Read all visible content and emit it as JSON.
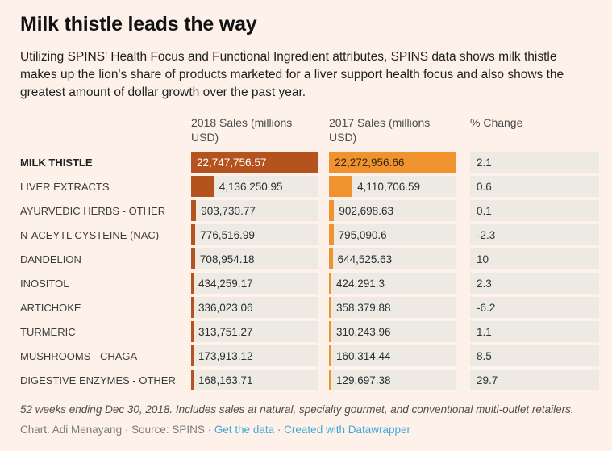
{
  "title": "Milk thistle leads the way",
  "subtitle": "Utilizing SPINS' Health Focus and Functional Ingredient attributes, SPINS data shows milk thistle makes up the lion's share of products marketed for a liver support health focus and also shows the greatest amount of dollar growth over the past year.",
  "chart_data": {
    "type": "bar",
    "layout": "bar-table, two bar columns plus numeric column, no gridlines, bars left-aligned in gray cells",
    "columns": [
      "2018 Sales (millions USD)",
      "2017 Sales (millions USD)",
      "% Change"
    ],
    "categories": [
      "MILK THISTLE",
      "LIVER EXTRACTS",
      "AYURVEDIC HERBS - OTHER",
      "N-ACEYTL CYSTEINE (NAC)",
      "DANDELION",
      "INOSITOL",
      "ARTICHOKE",
      "TURMERIC",
      "MUSHROOMS - CHAGA",
      "DIGESTIVE ENZYMES - OTHER"
    ],
    "series": [
      {
        "name": "2018 Sales (millions USD)",
        "values": [
          22747756.57,
          4136250.95,
          903730.77,
          776516.99,
          708954.18,
          434259.17,
          336023.06,
          313751.27,
          173913.12,
          168163.71
        ],
        "labels": [
          "22,747,756.57",
          "4,136,250.95",
          "903,730.77",
          "776,516.99",
          "708,954.18",
          "434,259.17",
          "336,023.06",
          "313,751.27",
          "173,913.12",
          "168,163.71"
        ]
      },
      {
        "name": "2017 Sales (millions USD)",
        "values": [
          22272956.66,
          4110706.59,
          902698.63,
          795090.6,
          644525.63,
          424291.3,
          358379.88,
          310243.96,
          160314.44,
          129697.38
        ],
        "labels": [
          "22,272,956.66",
          "4,110,706.59",
          "902,698.63",
          "795,090.6",
          "644,525.63",
          "424,291.3",
          "358,379.88",
          "310,243.96",
          "160,314.44",
          "129,697.38"
        ]
      }
    ],
    "pct_change": [
      "2.1",
      "0.6",
      "0.1",
      "-2.3",
      "10",
      "2.3",
      "-6.2",
      "1.1",
      "8.5",
      "29.7"
    ],
    "colors": {
      "page_bg": "#fdf1ea",
      "cell_bg": "#eceae3",
      "bar_2018": "#b5531e",
      "bar_2017": "#f0932f",
      "link": "#3fa9dc",
      "inside_text_2018": "#ffffff",
      "inside_text_2017": "#33250e"
    }
  },
  "footnote": "52 weeks ending Dec 30, 2018. Includes sales at natural, specialty gourmet, and conventional multi-outlet retailers.",
  "credit": {
    "prefix": "Chart: Adi Menayang · Source: SPINS · ",
    "link_data": "Get the data",
    "separator": " · ",
    "link_tool": "Created with Datawrapper"
  }
}
